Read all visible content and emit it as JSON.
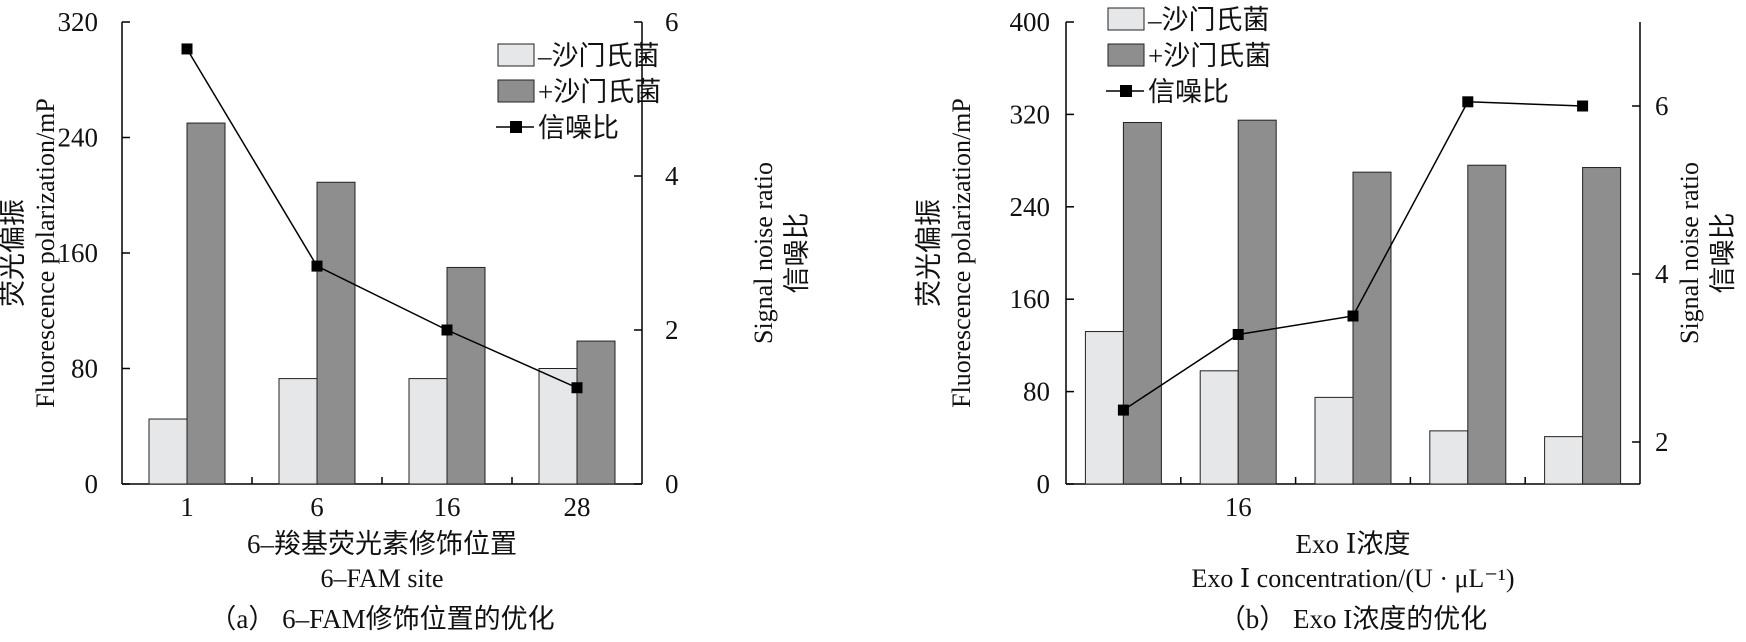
{
  "chart_data": [
    {
      "id": "a",
      "type": "bar",
      "caption": "（a） 6–FAM修饰位置的优化",
      "xlabel_cn": "6–羧基荧光素修饰位置",
      "xlabel_en": "6–FAM site",
      "ylabel_cn": "荧光偏振",
      "ylabel_en": "Fluorescence polarization/mP",
      "y2label_en": "Signal noise ratio",
      "y2label_cn": "信噪比",
      "categories": [
        "1",
        "6",
        "16",
        "28"
      ],
      "ylim": [
        0,
        320
      ],
      "yticks": [
        "0",
        "80",
        "160",
        "240",
        "320"
      ],
      "y2lim": [
        0,
        6
      ],
      "y2ticks": [
        "0",
        "2",
        "4",
        "6"
      ],
      "legend_position": "top-right",
      "series": [
        {
          "name": "–沙门氏菌",
          "type": "bar",
          "color": "#e6e7e9",
          "values": [
            45,
            73,
            73,
            80
          ]
        },
        {
          "name": "+沙门氏菌",
          "type": "bar",
          "color": "#8e8e8e",
          "values": [
            250,
            209,
            150,
            99
          ]
        },
        {
          "name": "信噪比",
          "type": "line",
          "axis": "right",
          "color": "#000000",
          "values": [
            5.65,
            2.83,
            2.0,
            1.25
          ]
        }
      ]
    },
    {
      "id": "b",
      "type": "bar",
      "caption": "（b） Exo I浓度的优化",
      "xlabel_cn": "Exo Ⅰ浓度",
      "xlabel_en": "Exo Ⅰ concentration/(U · μL⁻¹)",
      "ylabel_cn": "荧光偏振",
      "ylabel_en": "Fluorescence polarization/mP",
      "y2label_en": "Signal noise ratio",
      "y2label_cn": "信噪比",
      "categories": [
        "",
        "16",
        "",
        "",
        ""
      ],
      "ylim": [
        0,
        400
      ],
      "yticks": [
        "0",
        "80",
        "160",
        "240",
        "320",
        "400"
      ],
      "y2lim": [
        1.5,
        7
      ],
      "y2ticks": [
        "2",
        "4",
        "6"
      ],
      "legend_position": "top-left",
      "series": [
        {
          "name": "–沙门氏菌",
          "type": "bar",
          "color": "#e6e7e9",
          "values": [
            132,
            98,
            75,
            46,
            41
          ]
        },
        {
          "name": "+沙门氏菌",
          "type": "bar",
          "color": "#8e8e8e",
          "values": [
            313,
            315,
            270,
            276,
            274
          ]
        },
        {
          "name": "信噪比",
          "type": "line",
          "axis": "right",
          "color": "#000000",
          "values": [
            2.38,
            3.28,
            3.5,
            6.05,
            6.0
          ]
        }
      ]
    }
  ]
}
